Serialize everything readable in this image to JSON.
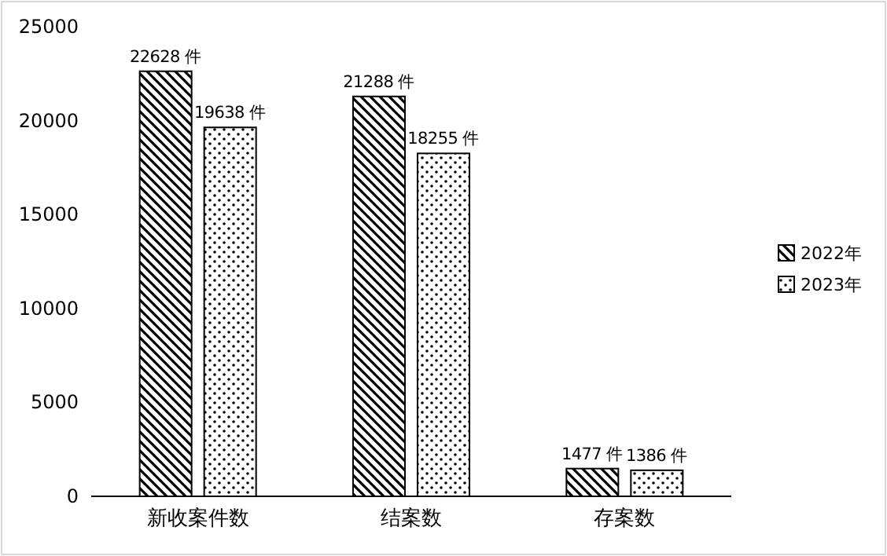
{
  "chart_data": {
    "type": "bar",
    "categories": [
      "新收案件数",
      "结案数",
      "存案数"
    ],
    "series": [
      {
        "name": "2022年",
        "color": "#000000",
        "values": [
          22628,
          21288,
          1477
        ],
        "value_labels": [
          "22628 件",
          "21288 件",
          "1477 件"
        ]
      },
      {
        "name": "2023年",
        "color": "#000000",
        "values": [
          19638,
          18255,
          1386
        ],
        "value_labels": [
          "19638 件",
          "18255 件",
          "1386 件"
        ]
      }
    ],
    "ylim": [
      0,
      25000
    ],
    "yticks": [
      0,
      5000,
      10000,
      15000,
      20000,
      25000
    ],
    "grid": false,
    "legend": "right"
  }
}
